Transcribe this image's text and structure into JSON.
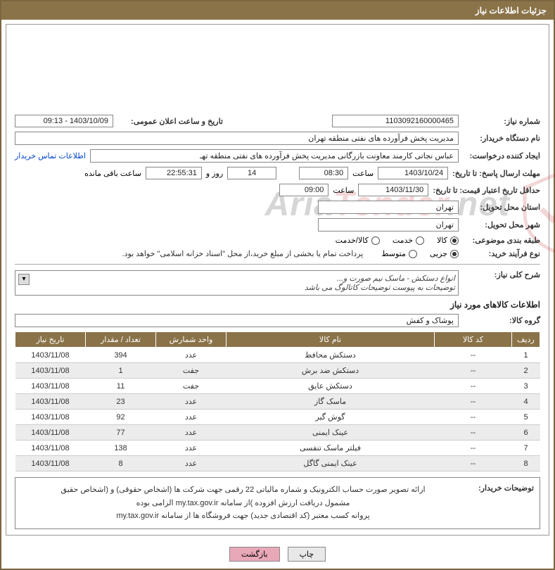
{
  "title": "جزئیات اطلاعات نیاز",
  "fields": {
    "need_no_label": "شماره نیاز:",
    "need_no": "1103092160000465",
    "announce_label": "تاریخ و ساعت اعلان عمومی:",
    "announce_val": "1403/10/09 - 09:13",
    "buyer_org_label": "نام دستگاه خریدار:",
    "buyer_org": "مدیریت پخش فرآورده های نفتی منطقه تهران",
    "requester_label": "ایجاد کننده درخواست:",
    "requester": "عباس نجاتی کارمند معاونت بازرگانی مدیریت پخش فرآورده های نفتی منطقه تهـ",
    "contact_link": "اطلاعات تماس خریدار",
    "deadline_label": "مهلت ارسال پاسخ: تا تاریخ:",
    "deadline_date": "1403/10/24",
    "time_label": "ساعت",
    "deadline_time": "08:30",
    "days_val": "14",
    "days_lbl": "روز و",
    "countdown": "22:55:31",
    "remaining_lbl": "ساعت باقی مانده",
    "validity_label": "حداقل تاریخ اعتبار قیمت: تا تاریخ:",
    "validity_date": "1403/11/30",
    "validity_time": "09:00",
    "province_label": "استان محل تحویل:",
    "province": "تهران",
    "city_label": "شهر محل تحویل:",
    "city": "تهران",
    "category_label": "طبقه بندی موضوعی:",
    "cat_goods": "کالا",
    "cat_service": "خدمت",
    "cat_both": "کالا/خدمت",
    "buy_type_label": "نوع فرآیند خرید:",
    "buy_partial": "جزیی",
    "buy_medium": "متوسط",
    "buy_note": "پرداخت تمام یا بخشی از مبلغ خرید،از محل \"اسناد خزانه اسلامی\" خواهد بود.",
    "overview_label": "شرح کلی نیاز:",
    "overview_line1": "انواع دستکش - ماسک نیم صورت و...",
    "overview_line2": "توضیحات به پیوست توضیحات کاتالوگ می باشد",
    "items_title": "اطلاعات کالاهای مورد نیاز",
    "group_label": "گروه کالا:",
    "group_val": "پوشاک و کفش",
    "notes_label": "توضیحات خریدار:",
    "notes_line1": "ارائه  تصویر صورت حساب الکترونیک و شماره مالیاتی 22 رقمی  جهت شرکت ها (اشخاص حقوقی) و (اشخاص حقیق",
    "notes_line2": "مشمول دریافت ارزش افزوده )از سامانه my.tax.gov.ir   الزامی بوده",
    "notes_line3": "پروانه کسب معتبر (کد اقتصادی جدید) جهت فروشگاه ها از سامانه my.tax.gov.ir",
    "btn_print": "چاپ",
    "btn_back": "بازگشت"
  },
  "table": {
    "headers": {
      "row": "ردیف",
      "code": "کد کالا",
      "name": "نام کالا",
      "unit": "واحد شمارش",
      "qty": "تعداد / مقدار",
      "date": "تاریخ نیاز"
    },
    "rows": [
      {
        "n": "1",
        "code": "--",
        "name": "دستکش محافظ",
        "unit": "عدد",
        "qty": "394",
        "date": "1403/11/08"
      },
      {
        "n": "2",
        "code": "--",
        "name": "دستکش ضد برش",
        "unit": "جفت",
        "qty": "1",
        "date": "1403/11/08"
      },
      {
        "n": "3",
        "code": "--",
        "name": "دستکش عایق",
        "unit": "جفت",
        "qty": "11",
        "date": "1403/11/08"
      },
      {
        "n": "4",
        "code": "--",
        "name": "ماسک گاز",
        "unit": "عدد",
        "qty": "23",
        "date": "1403/11/08"
      },
      {
        "n": "5",
        "code": "--",
        "name": "گوش گیر",
        "unit": "عدد",
        "qty": "92",
        "date": "1403/11/08"
      },
      {
        "n": "6",
        "code": "--",
        "name": "عینک ایمنی",
        "unit": "عدد",
        "qty": "77",
        "date": "1403/11/08"
      },
      {
        "n": "7",
        "code": "--",
        "name": "فیلتر ماسک تنفسی",
        "unit": "عدد",
        "qty": "138",
        "date": "1403/11/08"
      },
      {
        "n": "8",
        "code": "--",
        "name": "عینک ایمنی گاگل",
        "unit": "عدد",
        "qty": "8",
        "date": "1403/11/08"
      }
    ]
  },
  "colors": {
    "header_bg": "#8a7349",
    "header_fg": "#ffffff",
    "border": "#7a6640",
    "link": "#0044cc",
    "btn_back_bg": "#e8a8b8"
  }
}
